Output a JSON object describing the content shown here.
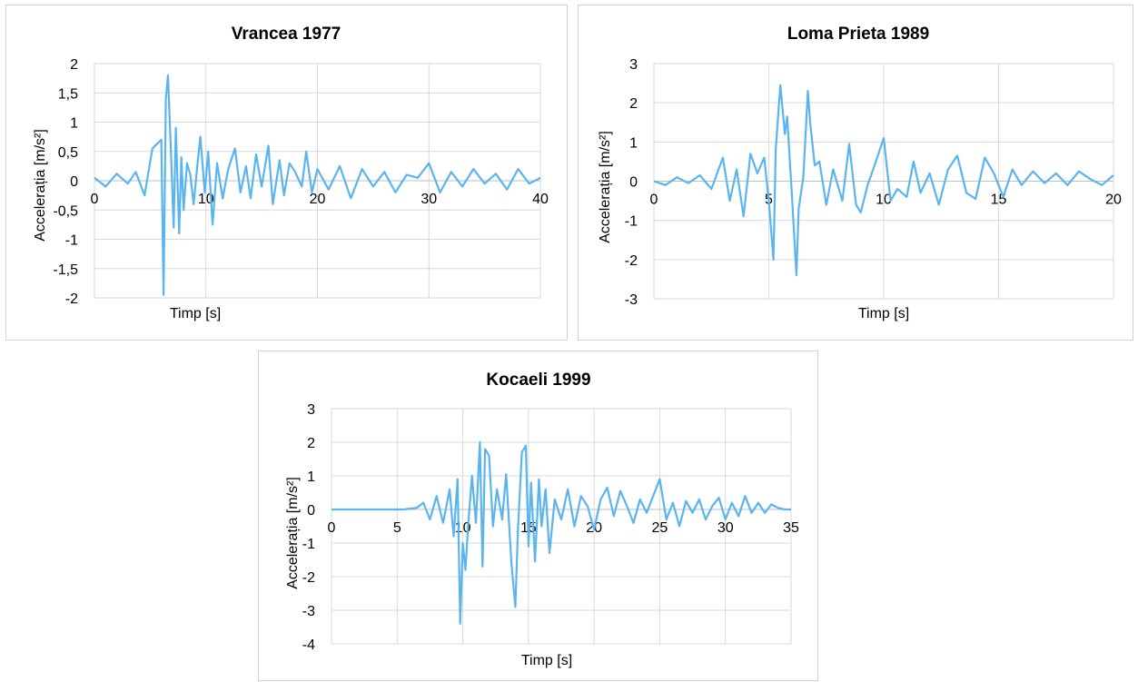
{
  "charts": [
    {
      "title": "Vrancea 1977",
      "xlabel": "Timp [s]",
      "ylabel": "Accelerația [m/s²]"
    },
    {
      "title": "Loma Prieta 1989",
      "xlabel": "Timp [s]",
      "ylabel": "Accelerația [m/s²]"
    },
    {
      "title": "Kocaeli 1999",
      "xlabel": "Timp [s]",
      "ylabel": "Accelerația [m/s²]"
    }
  ],
  "chart_data": [
    {
      "type": "line",
      "title": "Vrancea 1977",
      "xlabel": "Timp [s]",
      "ylabel": "Accelerația [m/s²]",
      "xlim": [
        0,
        40
      ],
      "ylim": [
        -2,
        2
      ],
      "xticks": [
        "0",
        "10",
        "20",
        "30",
        "40"
      ],
      "xtick_values": [
        0,
        10,
        20,
        30,
        40
      ],
      "yticks": [
        "2",
        "1,5",
        "1",
        "0,5",
        "0",
        "-0,5",
        "-1",
        "-1,5",
        "-2"
      ],
      "ytick_values": [
        2,
        1.5,
        1,
        0.5,
        0,
        -0.5,
        -1,
        -1.5,
        -2
      ],
      "grid": true,
      "color": "#5ab4f0",
      "x": [
        0,
        1,
        2,
        3,
        3.7,
        4.5,
        5.2,
        6,
        6.2,
        6.4,
        6.6,
        6.7,
        6.9,
        7.1,
        7.3,
        7.6,
        7.8,
        8,
        8.3,
        8.6,
        8.9,
        9.2,
        9.5,
        9.9,
        10.2,
        10.6,
        11,
        11.5,
        12,
        12.6,
        13.1,
        13.6,
        14,
        14.5,
        15,
        15.6,
        16,
        16.6,
        17,
        17.5,
        18,
        18.6,
        19,
        19.5,
        20,
        21,
        22,
        23,
        24,
        25,
        26,
        27,
        28,
        29,
        30,
        31,
        32,
        33,
        34,
        35,
        36,
        37,
        38,
        39,
        40
      ],
      "y": [
        0.05,
        -0.1,
        0.12,
        -0.05,
        0.15,
        -0.25,
        0.55,
        0.7,
        -1.95,
        1.4,
        1.8,
        1.3,
        0.3,
        -0.8,
        0.9,
        -0.9,
        0.4,
        -0.5,
        0.3,
        0.1,
        -0.4,
        0.2,
        0.75,
        -0.2,
        0.5,
        -0.75,
        0.3,
        -0.3,
        0.2,
        0.55,
        -0.2,
        0.25,
        -0.3,
        0.45,
        -0.1,
        0.6,
        -0.4,
        0.35,
        -0.25,
        0.3,
        0.15,
        -0.1,
        0.5,
        -0.2,
        0.2,
        -0.15,
        0.25,
        -0.3,
        0.2,
        -0.1,
        0.15,
        -0.2,
        0.1,
        0.05,
        0.3,
        -0.2,
        0.15,
        -0.1,
        0.2,
        -0.05,
        0.12,
        -0.15,
        0.2,
        -0.05,
        0.05
      ]
    },
    {
      "type": "line",
      "title": "Loma Prieta 1989",
      "xlabel": "Timp [s]",
      "ylabel": "Accelerația [m/s²]",
      "xlim": [
        0,
        20
      ],
      "ylim": [
        -3,
        3
      ],
      "xticks": [
        "0",
        "5",
        "10",
        "15",
        "20"
      ],
      "xtick_values": [
        0,
        5,
        10,
        15,
        20
      ],
      "yticks": [
        "3",
        "2",
        "1",
        "0",
        "-1",
        "-2",
        "-3"
      ],
      "ytick_values": [
        3,
        2,
        1,
        0,
        -1,
        -2,
        -3
      ],
      "grid": true,
      "color": "#5ab4f0",
      "x": [
        0,
        0.5,
        1,
        1.5,
        2,
        2.5,
        3,
        3.3,
        3.6,
        3.9,
        4.2,
        4.5,
        4.8,
        5,
        5.2,
        5.3,
        5.5,
        5.7,
        5.8,
        6,
        6.2,
        6.3,
        6.5,
        6.7,
        6.8,
        7,
        7.2,
        7.5,
        7.8,
        8.2,
        8.5,
        8.8,
        9,
        9.3,
        9.6,
        10,
        10.3,
        10.6,
        11,
        11.3,
        11.6,
        12,
        12.4,
        12.8,
        13.2,
        13.6,
        14,
        14.4,
        14.8,
        15.2,
        15.6,
        16,
        16.5,
        17,
        17.5,
        18,
        18.5,
        19,
        19.5,
        20
      ],
      "y": [
        0,
        -0.1,
        0.1,
        -0.05,
        0.15,
        -0.2,
        0.6,
        -0.5,
        0.3,
        -0.9,
        0.7,
        0.2,
        0.6,
        -0.5,
        -2.0,
        0.8,
        2.45,
        1.2,
        1.65,
        -0.3,
        -2.4,
        -0.7,
        0.1,
        2.3,
        1.5,
        0.4,
        0.5,
        -0.6,
        0.3,
        -0.5,
        0.95,
        -0.6,
        -0.8,
        -0.1,
        0.4,
        1.1,
        -0.5,
        -0.2,
        -0.4,
        0.5,
        -0.3,
        0.2,
        -0.6,
        0.3,
        0.65,
        -0.3,
        -0.45,
        0.6,
        0.2,
        -0.4,
        0.3,
        -0.1,
        0.25,
        -0.05,
        0.2,
        -0.1,
        0.25,
        0.05,
        -0.1,
        0.15
      ]
    },
    {
      "type": "line",
      "title": "Kocaeli 1999",
      "xlabel": "Timp [s]",
      "ylabel": "Accelerația [m/s²]",
      "xlim": [
        0,
        35
      ],
      "ylim": [
        -4,
        3
      ],
      "xticks": [
        "0",
        "5",
        "10",
        "15",
        "20",
        "25",
        "30",
        "35"
      ],
      "xtick_values": [
        0,
        5,
        10,
        15,
        20,
        25,
        30,
        35
      ],
      "yticks": [
        "3",
        "2",
        "1",
        "0",
        "-1",
        "-2",
        "-3",
        "-4"
      ],
      "ytick_values": [
        3,
        2,
        1,
        0,
        -1,
        -2,
        -3,
        -4
      ],
      "grid": true,
      "color": "#5ab4f0",
      "x": [
        0,
        2,
        4,
        5.5,
        6.5,
        7,
        7.5,
        8,
        8.5,
        9,
        9.3,
        9.6,
        9.8,
        10,
        10.2,
        10.4,
        10.7,
        11,
        11.3,
        11.5,
        11.7,
        12,
        12.3,
        12.6,
        13,
        13.3,
        13.7,
        14,
        14.2,
        14.5,
        14.8,
        15,
        15.2,
        15.5,
        15.8,
        16,
        16.3,
        16.6,
        17,
        17.5,
        18,
        18.5,
        19,
        19.5,
        20,
        20.5,
        21,
        21.5,
        22,
        22.5,
        23,
        23.5,
        24,
        24.5,
        25,
        25.5,
        26,
        26.5,
        27,
        27.5,
        28,
        28.5,
        29,
        29.5,
        30,
        30.5,
        31,
        31.5,
        32,
        32.5,
        33,
        33.5,
        34,
        34.5,
        35
      ],
      "y": [
        0,
        0,
        0,
        0,
        0.05,
        0.2,
        -0.3,
        0.4,
        -0.4,
        0.6,
        -0.8,
        0.9,
        -3.4,
        -1.0,
        -1.8,
        -0.5,
        1.0,
        -0.4,
        2.0,
        -1.7,
        1.8,
        1.6,
        -0.5,
        0.6,
        -0.3,
        1.05,
        -1.6,
        -2.9,
        -0.6,
        1.7,
        1.9,
        -1.1,
        0.8,
        -1.55,
        0.9,
        -0.5,
        0.6,
        -1.3,
        0.3,
        -0.3,
        0.6,
        -0.5,
        0.4,
        0.1,
        -0.6,
        0.3,
        0.65,
        -0.2,
        0.55,
        0.1,
        -0.4,
        0.3,
        -0.1,
        0.4,
        0.9,
        -0.3,
        0.2,
        -0.5,
        0.25,
        -0.1,
        0.3,
        -0.3,
        0.1,
        0.35,
        -0.3,
        0.2,
        -0.2,
        0.4,
        -0.1,
        0.2,
        -0.1,
        0.15,
        0.05,
        0,
        0
      ]
    }
  ]
}
